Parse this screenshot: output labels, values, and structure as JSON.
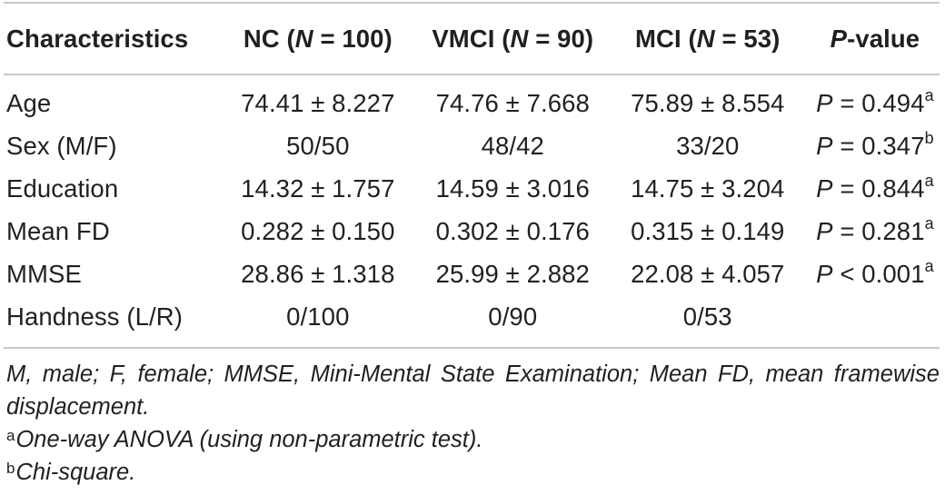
{
  "table": {
    "headers": [
      {
        "before": "Characteristics",
        "italic": "",
        "after": ""
      },
      {
        "before": "NC (",
        "italic": "N",
        "after": " = 100)"
      },
      {
        "before": "VMCI (",
        "italic": "N",
        "after": " = 90)"
      },
      {
        "before": "MCI (",
        "italic": "N",
        "after": " = 53)"
      },
      {
        "before": "",
        "italic": "P",
        "after": "-value"
      }
    ],
    "rows": [
      {
        "label": "Age",
        "nc": "74.41 ± 8.227",
        "vmci": "74.76 ± 7.668",
        "mci": "75.89 ± 8.554",
        "p_text": " = 0.494",
        "p_sup": "a"
      },
      {
        "label": "Sex (M/F)",
        "nc": "50/50",
        "vmci": "48/42",
        "mci": "33/20",
        "p_text": " = 0.347",
        "p_sup": "b"
      },
      {
        "label": "Education",
        "nc": "14.32 ± 1.757",
        "vmci": "14.59 ± 3.016",
        "mci": "14.75 ± 3.204",
        "p_text": " = 0.844",
        "p_sup": "a"
      },
      {
        "label": "Mean FD",
        "nc": "0.282 ± 0.150",
        "vmci": "0.302 ± 0.176",
        "mci": "0.315 ± 0.149",
        "p_text": " = 0.281",
        "p_sup": "a"
      },
      {
        "label": "MMSE",
        "nc": "28.86 ± 1.318",
        "vmci": "25.99 ± 2.882",
        "mci": "22.08 ± 4.057",
        "p_text": " < 0.001",
        "p_sup": "a"
      },
      {
        "label": "Handness (L/R)",
        "nc": "0/100",
        "vmci": "0/90",
        "mci": "0/53",
        "p_text": "",
        "p_sup": ""
      }
    ]
  },
  "footnotes": {
    "abbreviations": "M, male; F, female; MMSE, Mini-Mental State Examination; Mean FD, mean framewise displacement.",
    "note_a_mark": "a",
    "note_a": "One-way ANOVA (using non-parametric test).",
    "note_b_mark": "b",
    "note_b": "Chi-square."
  }
}
